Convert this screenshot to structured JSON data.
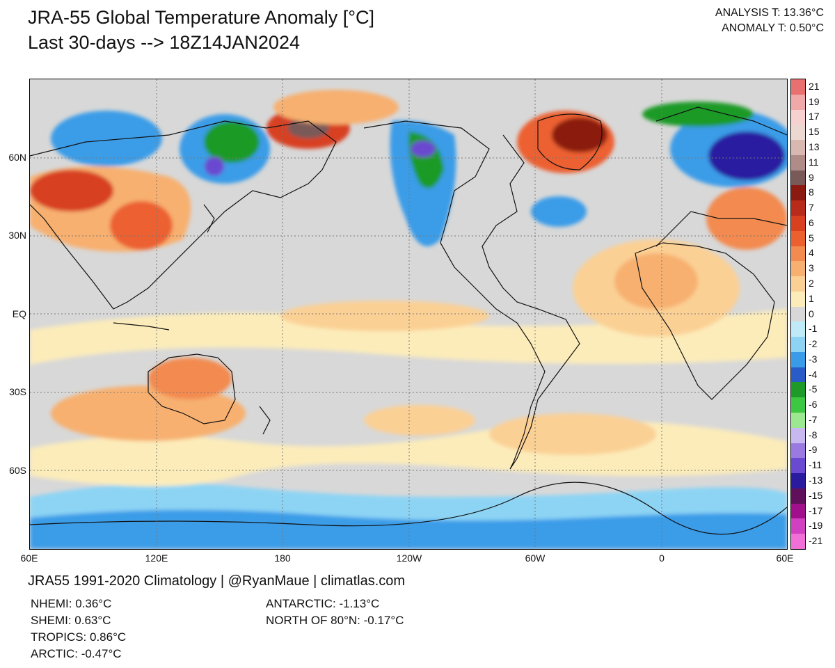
{
  "header": {
    "title": "JRA-55 Global Temperature Anomaly [°C]",
    "subtitle": "Last 30-days --> 18Z14JAN2024",
    "analysis_t": "ANALYSIS T: 13.36°C",
    "anomaly_t": "ANOMALY T: 0.50°C"
  },
  "map": {
    "lat_labels": [
      "60N",
      "30N",
      "EQ",
      "30S",
      "60S"
    ],
    "lon_labels": [
      "60E",
      "120E",
      "180",
      "120W",
      "60W",
      "0",
      "60E"
    ]
  },
  "colorbar": {
    "labels": [
      "21",
      "19",
      "17",
      "15",
      "13",
      "11",
      "9",
      "8",
      "7",
      "6",
      "5",
      "4",
      "3",
      "2",
      "1",
      "0",
      "-1",
      "-2",
      "-3",
      "-4",
      "-5",
      "-6",
      "-7",
      "-8",
      "-9",
      "-11",
      "-13",
      "-15",
      "-17",
      "-19",
      "-21"
    ],
    "colors": [
      "#e87070",
      "#f0a8a8",
      "#f7d0d0",
      "#ecd8d0",
      "#d8b8b0",
      "#b08c88",
      "#7a5a58",
      "#8b1a10",
      "#b82a1a",
      "#d84020",
      "#ec6030",
      "#f38a50",
      "#f7b070",
      "#fbd094",
      "#fcecba",
      "#d8d8d8",
      "#bfeaf8",
      "#8dd4f4",
      "#3a9ce8",
      "#2a5cc8",
      "#1e9a28",
      "#3cc840",
      "#9ce890",
      "#c8b8f0",
      "#9a7ae0",
      "#6a4ad0",
      "#2a1aa0",
      "#60105a",
      "#a0108c",
      "#d040c0",
      "#f070d8"
    ]
  },
  "footer": {
    "credit": "JRA55 1991-2020 Climatology | @RyanMaue | climatlas.com",
    "stats_left": [
      "NHEMI: 0.36°C",
      "SHEMI: 0.63°C",
      "TROPICS: 0.86°C",
      "ARCTIC: -0.47°C"
    ],
    "stats_right": [
      "ANTARCTIC: -1.13°C",
      "NORTH OF 80°N: -0.17°C"
    ]
  }
}
